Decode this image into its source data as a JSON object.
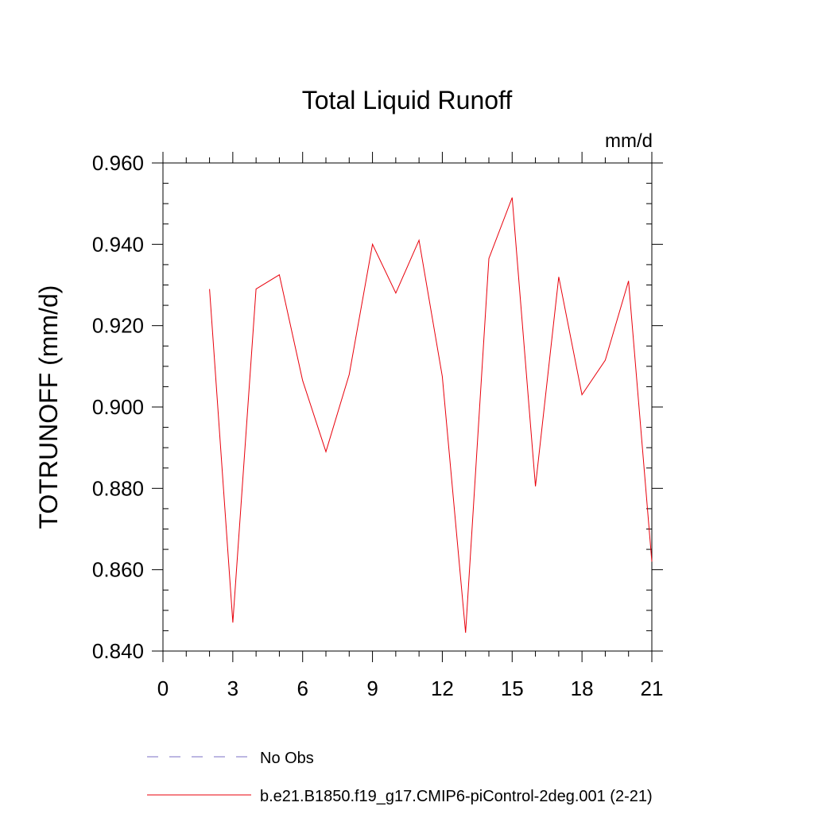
{
  "chart_data": {
    "type": "line",
    "title": "Total Liquid Runoff",
    "units": "mm/d",
    "ylabel": "TOTRUNOFF  (mm/d)",
    "xlabel": "",
    "xlim": [
      0,
      21
    ],
    "ylim": [
      0.84,
      0.96
    ],
    "x_ticks": [
      "0",
      "3",
      "6",
      "9",
      "12",
      "15",
      "18",
      "21"
    ],
    "y_ticks": [
      "0.840",
      "0.860",
      "0.880",
      "0.900",
      "0.920",
      "0.940",
      "0.960"
    ],
    "grid": false,
    "legend_position": "bottom",
    "series": [
      {
        "name": "No Obs",
        "color": "#7b6fc6",
        "dash": "dashed",
        "x": [],
        "y": []
      },
      {
        "name": "b.e21.B1850.f19_g17.CMIP6-piControl-2deg.001 (2-21)",
        "color": "#e8000b",
        "dash": "solid",
        "x": [
          2,
          3,
          4,
          5,
          6,
          7,
          8,
          9,
          10,
          11,
          12,
          13,
          14,
          15,
          16,
          17,
          18,
          19,
          20,
          21
        ],
        "y": [
          0.929,
          0.847,
          0.929,
          0.9325,
          0.9065,
          0.889,
          0.908,
          0.94,
          0.928,
          0.941,
          0.9075,
          0.8445,
          0.9365,
          0.9515,
          0.8805,
          0.932,
          0.903,
          0.9115,
          0.931,
          0.862
        ]
      }
    ]
  }
}
